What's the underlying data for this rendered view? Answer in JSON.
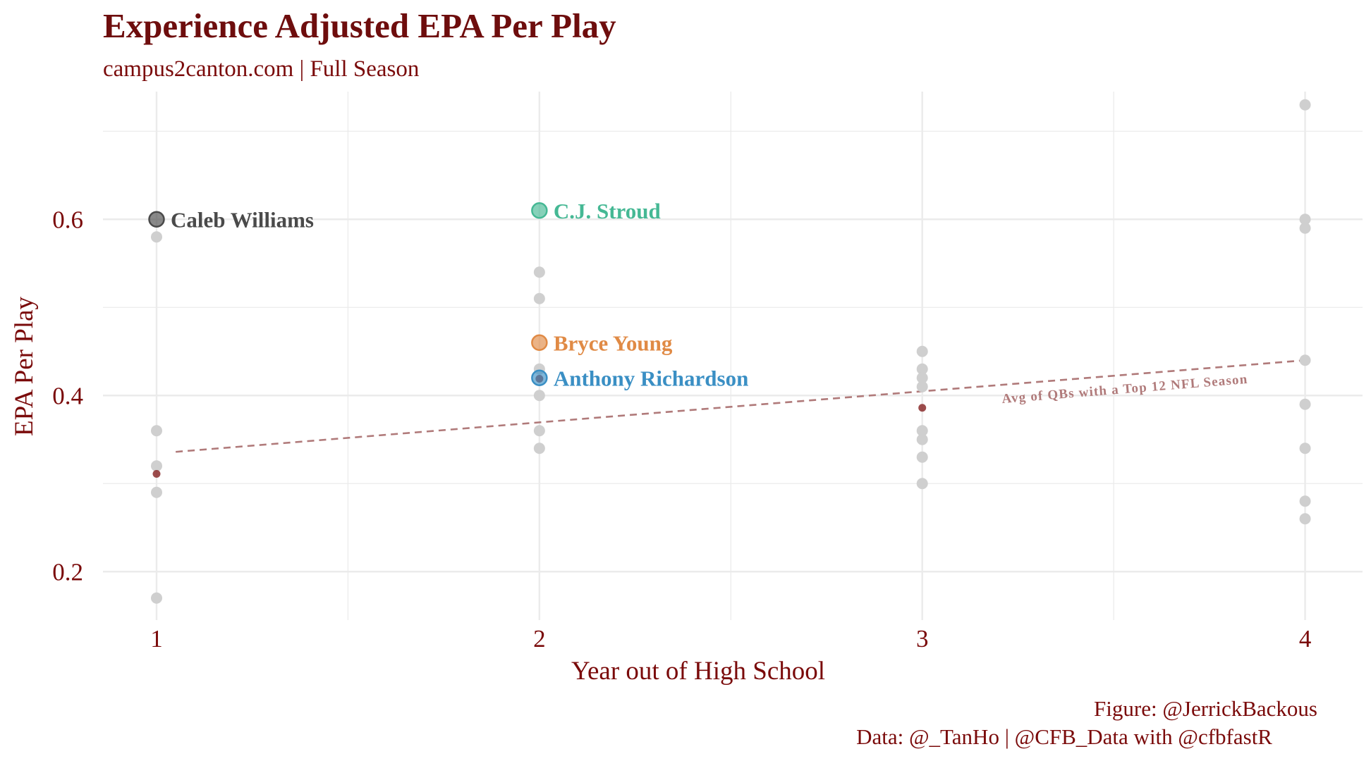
{
  "header": {
    "title": "Experience Adjusted EPA Per Play",
    "subtitle": "campus2canton.com | Full Season"
  },
  "caption": {
    "line1": "Figure: @JerrickBackous",
    "line2": "Data: @_TanHo | @CFB_Data with @cfbfastR"
  },
  "colors": {
    "text": "#7a0a0a",
    "grid": "#ebebeb",
    "background_points": "#cfcfcf",
    "avg_points": "#8b2d2d",
    "trend_line": "#b07a7a"
  },
  "chart_data": {
    "type": "scatter",
    "xlabel": "Year out of High School",
    "ylabel": "EPA Per Play",
    "xlim": [
      0.86,
      4.15
    ],
    "ylim": [
      0.145,
      0.745
    ],
    "xticks": [
      {
        "value": 1,
        "label": "1"
      },
      {
        "value": 2,
        "label": "2"
      },
      {
        "value": 3,
        "label": "3"
      },
      {
        "value": 4,
        "label": "4"
      }
    ],
    "yticks": [
      {
        "value": 0.2,
        "label": "0.2"
      },
      {
        "value": 0.4,
        "label": "0.4"
      },
      {
        "value": 0.6,
        "label": "0.6"
      }
    ],
    "grid": true,
    "background_points": [
      {
        "x": 1,
        "y": 0.58
      },
      {
        "x": 1,
        "y": 0.36
      },
      {
        "x": 1,
        "y": 0.32
      },
      {
        "x": 1,
        "y": 0.29
      },
      {
        "x": 1,
        "y": 0.17
      },
      {
        "x": 2,
        "y": 0.54
      },
      {
        "x": 2,
        "y": 0.51
      },
      {
        "x": 2,
        "y": 0.43
      },
      {
        "x": 2,
        "y": 0.4
      },
      {
        "x": 2,
        "y": 0.36
      },
      {
        "x": 2,
        "y": 0.34
      },
      {
        "x": 3,
        "y": 0.45
      },
      {
        "x": 3,
        "y": 0.43
      },
      {
        "x": 3,
        "y": 0.42
      },
      {
        "x": 3,
        "y": 0.41
      },
      {
        "x": 3,
        "y": 0.36
      },
      {
        "x": 3,
        "y": 0.35
      },
      {
        "x": 3,
        "y": 0.33
      },
      {
        "x": 3,
        "y": 0.3
      },
      {
        "x": 4,
        "y": 0.73
      },
      {
        "x": 4,
        "y": 0.6
      },
      {
        "x": 4,
        "y": 0.59
      },
      {
        "x": 4,
        "y": 0.44
      },
      {
        "x": 4,
        "y": 0.39
      },
      {
        "x": 4,
        "y": 0.34
      },
      {
        "x": 4,
        "y": 0.28
      },
      {
        "x": 4,
        "y": 0.26
      }
    ],
    "average_points": [
      {
        "x": 1,
        "y": 0.311
      },
      {
        "x": 2,
        "y": 0.419
      },
      {
        "x": 3,
        "y": 0.386
      }
    ],
    "trend_line": {
      "x_start": 1.05,
      "y_start": 0.336,
      "x_end": 4.0,
      "y_end": 0.44,
      "label": "Avg of QBs with a Top 12 NFL Season"
    },
    "highlighted": [
      {
        "name": "Caleb Williams",
        "x": 1,
        "y": 0.6,
        "color": "#4a4a4a"
      },
      {
        "name": "C.J. Stroud",
        "x": 2,
        "y": 0.61,
        "color": "#45b894"
      },
      {
        "name": "Bryce Young",
        "x": 2,
        "y": 0.46,
        "color": "#e08a45"
      },
      {
        "name": "Anthony Richardson",
        "x": 2,
        "y": 0.42,
        "color": "#3a8fc4"
      }
    ]
  }
}
